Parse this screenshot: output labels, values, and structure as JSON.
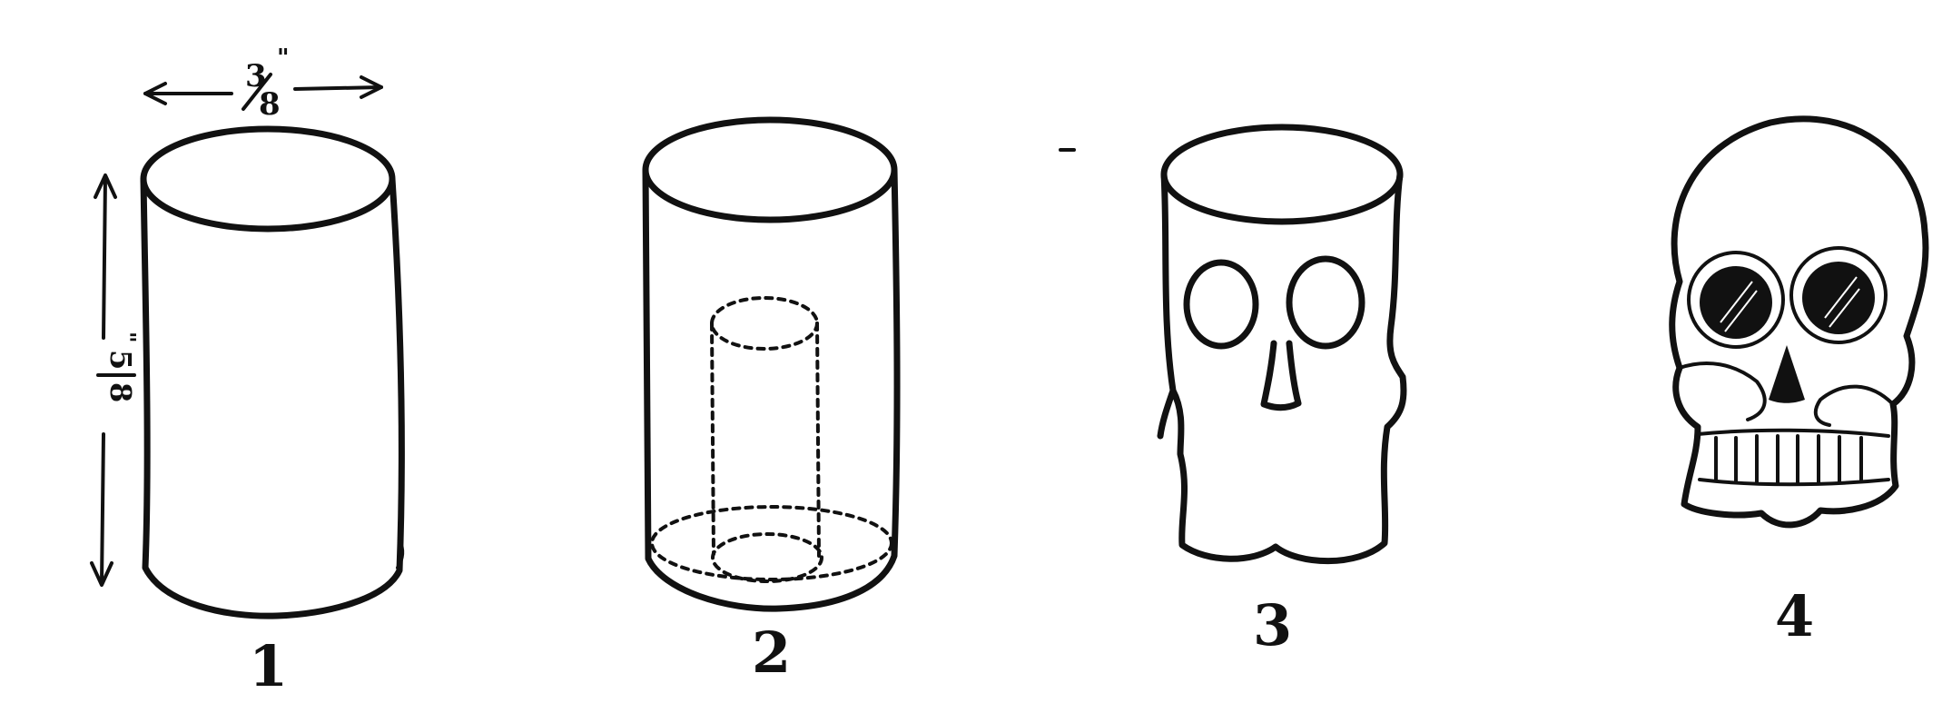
{
  "figures": [
    {
      "label": "1"
    },
    {
      "label": "2"
    },
    {
      "label": "3"
    },
    {
      "label": "4"
    }
  ],
  "dimensions": {
    "width": {
      "numerator": "3",
      "denominator": "8",
      "unit": "\""
    },
    "height": {
      "numerator": "5",
      "denominator": "8",
      "unit": "\""
    }
  },
  "colors": {
    "ink": "#111111",
    "paper": "#ffffff"
  }
}
